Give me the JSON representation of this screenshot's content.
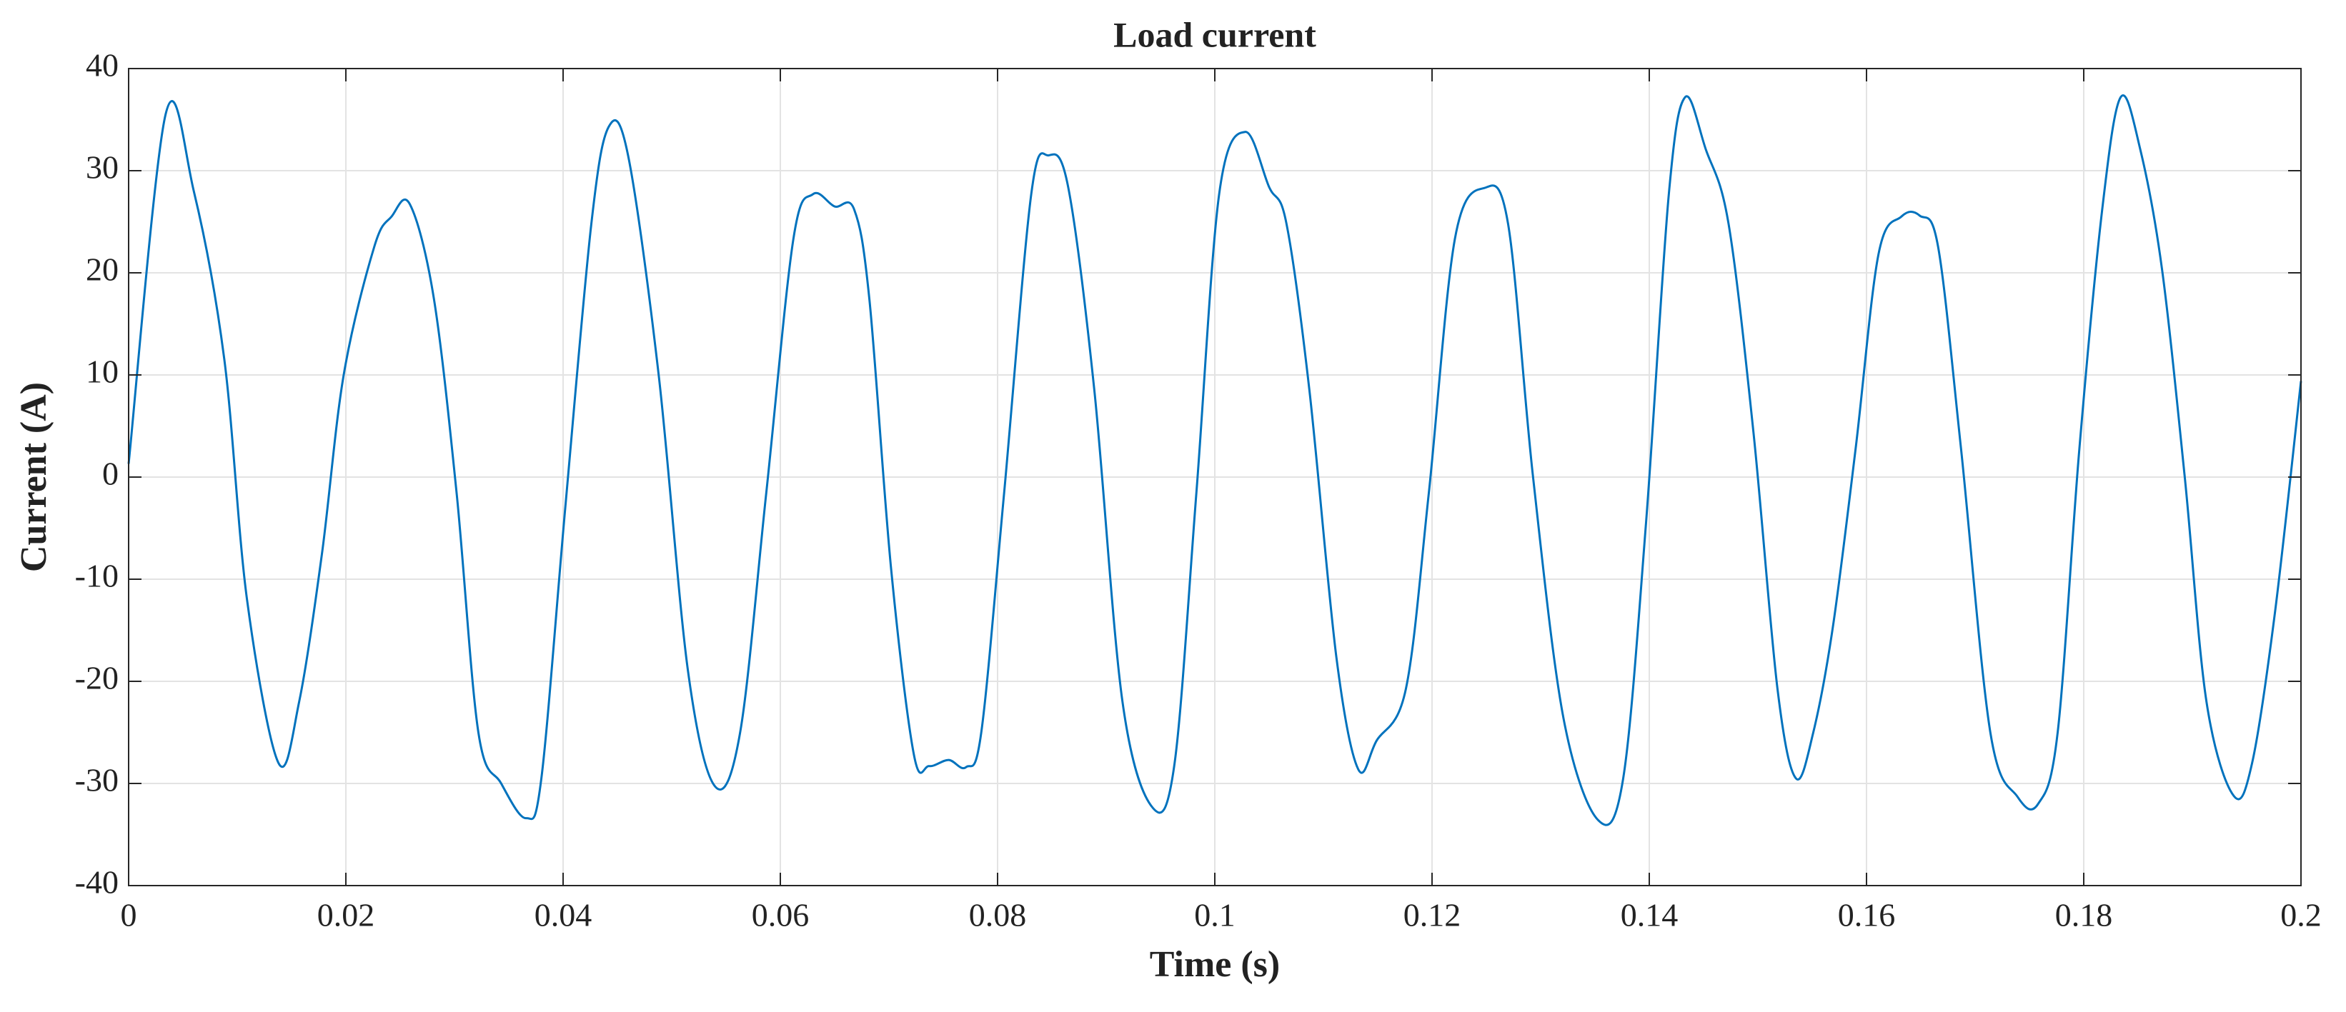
{
  "chart_data": {
    "type": "line",
    "title": "Load current",
    "xlabel": "Time (s)",
    "ylabel": "Current (A)",
    "x": [
      0,
      0.0034,
      0.006,
      0.0088,
      0.0109,
      0.0138,
      0.0157,
      0.0178,
      0.0198,
      0.0226,
      0.0242,
      0.0259,
      0.0281,
      0.0302,
      0.0322,
      0.0343,
      0.0366,
      0.038,
      0.0402,
      0.0426,
      0.0442,
      0.046,
      0.0488,
      0.0515,
      0.054,
      0.0563,
      0.0587,
      0.0612,
      0.063,
      0.065,
      0.0668,
      0.0682,
      0.0702,
      0.0723,
      0.0737,
      0.0755,
      0.0771,
      0.0785,
      0.0806,
      0.0831,
      0.0847,
      0.0865,
      0.0889,
      0.0915,
      0.0943,
      0.0963,
      0.0983,
      0.1004,
      0.1028,
      0.105,
      0.1066,
      0.1087,
      0.1112,
      0.1132,
      0.1149,
      0.1176,
      0.1197,
      0.1221,
      0.1248,
      0.127,
      0.1293,
      0.1321,
      0.1353,
      0.1376,
      0.1397,
      0.1418,
      0.1433,
      0.1452,
      0.1473,
      0.1496,
      0.1518,
      0.1535,
      0.1551,
      0.1569,
      0.159,
      0.1611,
      0.1632,
      0.1649,
      0.1666,
      0.1687,
      0.1714,
      0.1739,
      0.1758,
      0.1776,
      0.1796,
      0.1817,
      0.1834,
      0.1852,
      0.1872,
      0.1893,
      0.1913,
      0.1938,
      0.1955,
      0.1976,
      0.2
    ],
    "values": [
      1.3,
      35.5,
      28,
      11.6,
      -12,
      -28,
      -22,
      -7.5,
      10,
      22.5,
      25.5,
      26.7,
      17.5,
      -1.6,
      -25,
      -30,
      -33.4,
      -29.5,
      -3,
      24.8,
      34.3,
      31.4,
      10,
      -19,
      -30.3,
      -25,
      -1.6,
      23.3,
      27.7,
      26.5,
      26.2,
      17.4,
      -9,
      -27.2,
      -28.3,
      -27.7,
      -28.4,
      -25,
      -1.6,
      27.7,
      31.5,
      28.4,
      8.6,
      -22,
      -32.4,
      -28,
      -1.6,
      27.7,
      33.8,
      28.4,
      24.8,
      8.6,
      -17.7,
      -28.6,
      -25.8,
      -20.7,
      -1.6,
      23.3,
      28.3,
      24.8,
      0,
      -23.6,
      -33.6,
      -29.5,
      -4.5,
      27.7,
      37.2,
      32.1,
      24.8,
      4.3,
      -20.7,
      -29.5,
      -25,
      -14.7,
      2.8,
      21.8,
      25.5,
      25.6,
      22.5,
      2.8,
      -25,
      -31.3,
      -32,
      -25,
      2.8,
      26.2,
      37.2,
      32.1,
      20.4,
      0,
      -22,
      -31.2,
      -28,
      -13.3,
      9.4
    ],
    "color": "#0072bd",
    "xlim": [
      0,
      0.2
    ],
    "xticks": [
      0,
      0.02,
      0.04,
      0.06,
      0.08,
      0.1,
      0.12,
      0.14,
      0.16,
      0.18,
      0.2
    ],
    "ylim": [
      -40,
      40
    ],
    "yticks": [
      -40,
      -30,
      -20,
      -10,
      0,
      10,
      20,
      30,
      40
    ],
    "grid": true
  }
}
